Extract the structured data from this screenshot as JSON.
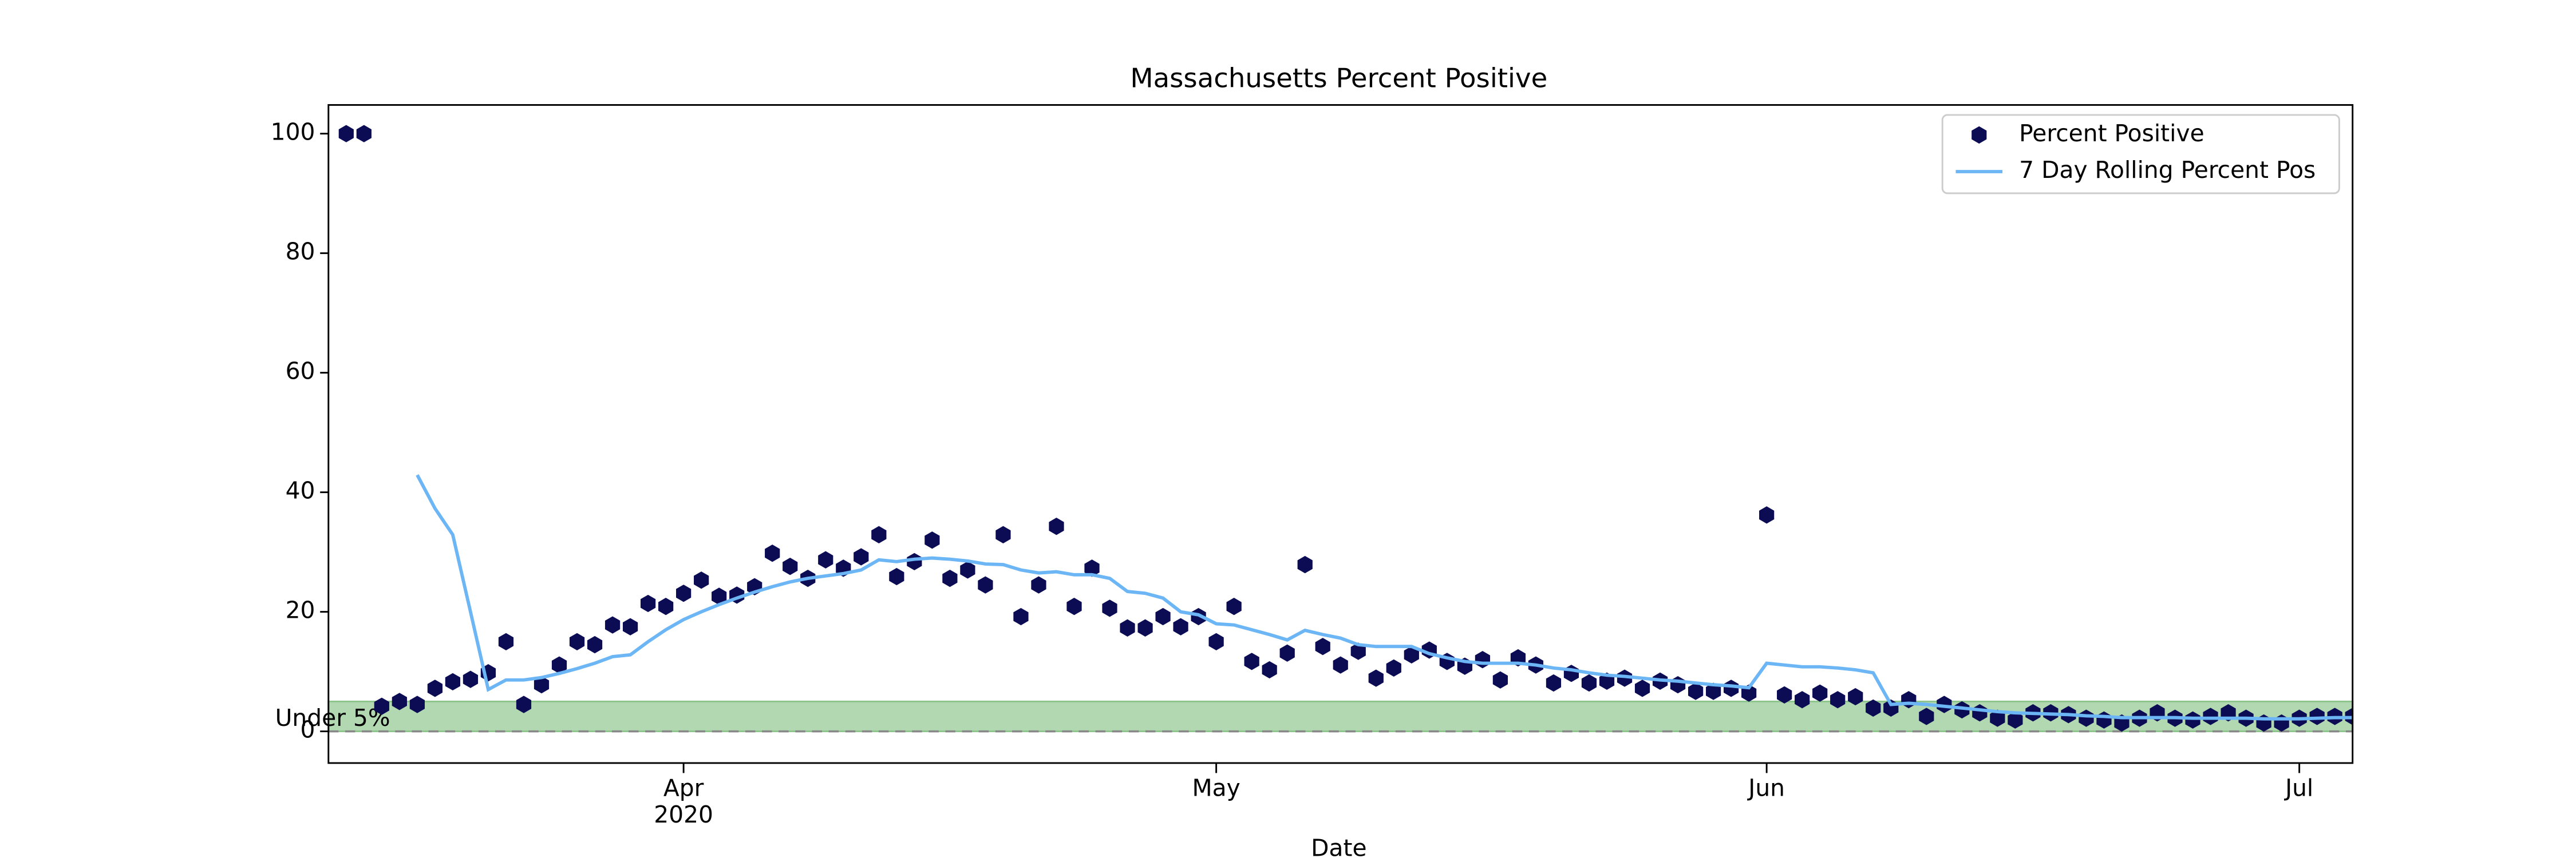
{
  "chart_data": {
    "type": "line",
    "title": "Massachusetts Percent Positive",
    "xlabel": "Date",
    "x": [
      "2020-03-13",
      "2020-03-14",
      "2020-03-15",
      "2020-03-16",
      "2020-03-17",
      "2020-03-18",
      "2020-03-19",
      "2020-03-20",
      "2020-03-21",
      "2020-03-22",
      "2020-03-23",
      "2020-03-24",
      "2020-03-25",
      "2020-03-26",
      "2020-03-27",
      "2020-03-28",
      "2020-03-29",
      "2020-03-30",
      "2020-03-31",
      "2020-04-01",
      "2020-04-02",
      "2020-04-03",
      "2020-04-04",
      "2020-04-05",
      "2020-04-06",
      "2020-04-07",
      "2020-04-08",
      "2020-04-09",
      "2020-04-10",
      "2020-04-11",
      "2020-04-12",
      "2020-04-13",
      "2020-04-14",
      "2020-04-15",
      "2020-04-16",
      "2020-04-17",
      "2020-04-18",
      "2020-04-19",
      "2020-04-20",
      "2020-04-21",
      "2020-04-22",
      "2020-04-23",
      "2020-04-24",
      "2020-04-25",
      "2020-04-26",
      "2020-04-27",
      "2020-04-28",
      "2020-04-29",
      "2020-04-30",
      "2020-05-01",
      "2020-05-02",
      "2020-05-03",
      "2020-05-04",
      "2020-05-05",
      "2020-05-06",
      "2020-05-07",
      "2020-05-08",
      "2020-05-09",
      "2020-05-10",
      "2020-05-11",
      "2020-05-12",
      "2020-05-13",
      "2020-05-14",
      "2020-05-15",
      "2020-05-16",
      "2020-05-17",
      "2020-05-18",
      "2020-05-19",
      "2020-05-20",
      "2020-05-21",
      "2020-05-22",
      "2020-05-23",
      "2020-05-24",
      "2020-05-25",
      "2020-05-26",
      "2020-05-27",
      "2020-05-28",
      "2020-05-29",
      "2020-05-30",
      "2020-05-31",
      "2020-06-01",
      "2020-06-02",
      "2020-06-03",
      "2020-06-04",
      "2020-06-05",
      "2020-06-06",
      "2020-06-07",
      "2020-06-08",
      "2020-06-09",
      "2020-06-10",
      "2020-06-11",
      "2020-06-12",
      "2020-06-13",
      "2020-06-14",
      "2020-06-15",
      "2020-06-16",
      "2020-06-17",
      "2020-06-18",
      "2020-06-19",
      "2020-06-20",
      "2020-06-21",
      "2020-06-22",
      "2020-06-23",
      "2020-06-24",
      "2020-06-25",
      "2020-06-26",
      "2020-06-27",
      "2020-06-28",
      "2020-06-29",
      "2020-06-30",
      "2020-07-01",
      "2020-07-02",
      "2020-07-03",
      "2020-07-04"
    ],
    "series": [
      {
        "name": "Percent Positive",
        "type": "scatter",
        "color": "#0c0c55",
        "values": [
          100,
          100,
          4.2,
          5,
          4.5,
          7.2,
          8.3,
          8.7,
          9.8,
          15,
          4.5,
          7.8,
          11.1,
          15,
          14.5,
          17.8,
          17.5,
          21.4,
          20.9,
          23.1,
          25.3,
          22.6,
          22.8,
          24.2,
          29.8,
          27.6,
          25.6,
          28.7,
          27.3,
          29.2,
          32.9,
          25.9,
          28.4,
          32,
          25.6,
          27,
          24.5,
          32.9,
          19.2,
          24.5,
          34.3,
          20.9,
          27.3,
          20.6,
          17.3,
          17.3,
          19.2,
          17.5,
          19.2,
          15,
          20.9,
          11.7,
          10.3,
          13.1,
          27.9,
          14.2,
          11.1,
          13.4,
          8.9,
          10.6,
          12.8,
          13.6,
          11.7,
          10.9,
          12,
          8.6,
          12.3,
          11.1,
          8.1,
          9.7,
          8.1,
          8.4,
          8.9,
          7.2,
          8.4,
          7.8,
          6.7,
          6.7,
          7.2,
          6.4,
          36.2,
          6.1,
          5.3,
          6.4,
          5.3,
          5.8,
          3.9,
          3.9,
          5.3,
          2.5,
          4.5,
          3.6,
          3.1,
          2.2,
          1.9,
          3.1,
          3.1,
          2.8,
          2.2,
          1.9,
          1.4,
          2.2,
          3.1,
          2.2,
          1.9,
          2.5,
          3.1,
          2.2,
          1.4,
          1.4,
          2.2,
          2.5,
          2.5,
          2.5
        ]
      },
      {
        "name": "7 Day Rolling Percent Pos",
        "type": "line",
        "color": "#6cb6f5",
        "values": [
          null,
          null,
          null,
          null,
          42.9,
          37.3,
          32.9,
          20,
          7,
          8.6,
          8.6,
          9,
          9.7,
          10.5,
          11.4,
          12.5,
          12.8,
          15,
          17,
          18.7,
          20,
          21.2,
          22.3,
          23.3,
          24.2,
          25,
          25.6,
          26,
          26.4,
          27,
          28.7,
          28.4,
          28.8,
          29,
          28.8,
          28.5,
          28,
          27.9,
          27,
          26.5,
          26.7,
          26.2,
          26.2,
          25.6,
          23.4,
          23.1,
          22.3,
          20,
          19.5,
          18,
          17.8,
          17,
          16.2,
          15.3,
          16.9,
          16.2,
          15.6,
          14.5,
          14.2,
          14.2,
          14.2,
          13,
          12.3,
          11.7,
          11.4,
          11.4,
          11.4,
          11.1,
          10.6,
          10.3,
          9.8,
          9.4,
          9.2,
          8.9,
          8.6,
          8.4,
          8.1,
          7.8,
          7.6,
          7.3,
          11.4,
          11.1,
          10.8,
          10.8,
          10.6,
          10.3,
          9.8,
          4.5,
          4.7,
          4.5,
          4.2,
          3.9,
          3.6,
          3.3,
          3.1,
          3,
          2.9,
          2.8,
          2.6,
          2.5,
          2.3,
          2.3,
          2.3,
          2.3,
          2.2,
          2.2,
          2.2,
          2.2,
          2.1,
          2.1,
          2.1,
          2.2,
          2.3,
          2.3
        ]
      }
    ],
    "band": {
      "range": [
        0,
        5
      ],
      "label": "Under 5%",
      "color": "#b2d8b2"
    },
    "reference_line": 0,
    "xlim": [
      "2020-03-12",
      "2020-07-04"
    ],
    "xticks": [
      {
        "value": "2020-04-01",
        "label": "Apr"
      },
      {
        "value": "2020-05-01",
        "label": "May"
      },
      {
        "value": "2020-06-01",
        "label": "Jun"
      },
      {
        "value": "2020-07-01",
        "label": "Jul"
      }
    ],
    "x_offset_label": "2020",
    "ylim": [
      -5.3,
      104.8
    ],
    "yticks": [
      0,
      20,
      40,
      60,
      80,
      100
    ],
    "legend": "upper right"
  }
}
